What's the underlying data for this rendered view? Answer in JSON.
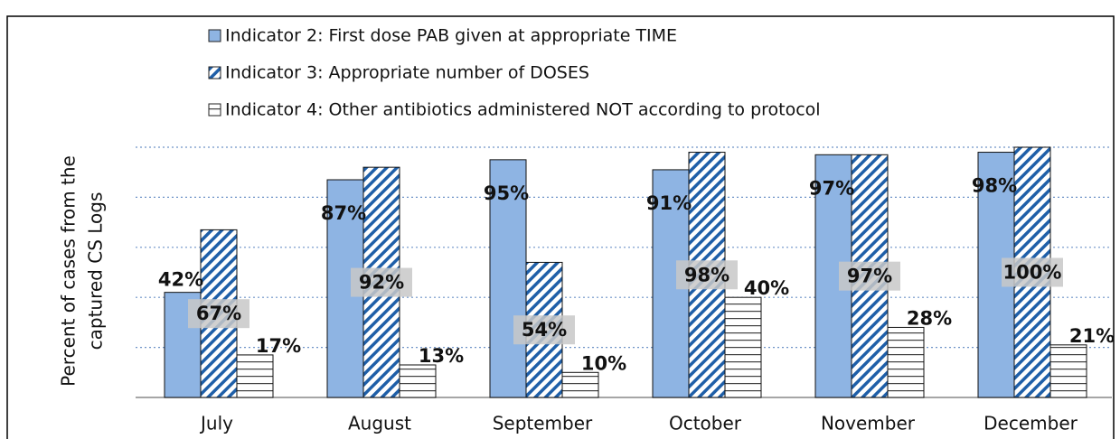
{
  "chart_data": {
    "type": "bar",
    "ylabel": [
      "Percent of cases from the",
      "captured CS Logs"
    ],
    "categories": [
      "July",
      "August",
      "September",
      "October",
      "November",
      "December"
    ],
    "series": [
      {
        "name": "Indicator 2: First dose PAB given at appropriate TIME",
        "color": "#8eb4e3",
        "pattern": "solid",
        "values": [
          42,
          87,
          95,
          91,
          97,
          98
        ],
        "value_labels": [
          "42%",
          "87%",
          "95%",
          "91%",
          "97%",
          "98%"
        ]
      },
      {
        "name": "Indicator 3: Appropriate number of DOSES",
        "color": "#1f5fa8",
        "pattern": "diagonal",
        "values": [
          67,
          92,
          54,
          98,
          97,
          100
        ],
        "value_labels": [
          "67%",
          "92%",
          "54%",
          "98%",
          "97%",
          "100%"
        ]
      },
      {
        "name": "Indicator 4: Other antibiotics administered NOT according to protocol",
        "color": "#404040",
        "pattern": "horizontal",
        "values": [
          17,
          13,
          10,
          40,
          28,
          21
        ],
        "value_labels": [
          "17%",
          "13%",
          "10%",
          "40%",
          "28%",
          "21%"
        ]
      }
    ],
    "ylim": [
      0,
      100
    ],
    "yticks": [
      0,
      20,
      40,
      60,
      80,
      100
    ],
    "grid": true
  }
}
